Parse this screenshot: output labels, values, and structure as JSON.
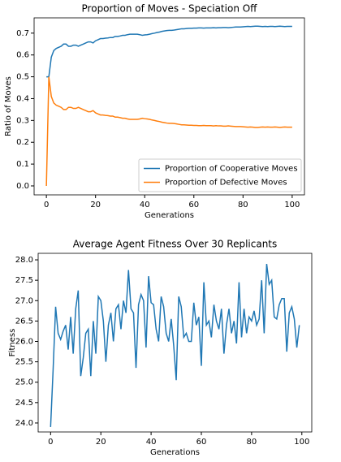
{
  "chart_data": [
    {
      "type": "line",
      "title": "Proportion of Moves - Speciation Off",
      "x_label": "Generations",
      "y_label": "Ratio of Moves",
      "x": [
        0,
        1,
        2,
        3,
        4,
        5,
        6,
        7,
        8,
        9,
        10,
        11,
        12,
        13,
        14,
        15,
        16,
        17,
        18,
        19,
        20,
        21,
        22,
        23,
        24,
        25,
        26,
        27,
        28,
        29,
        30,
        31,
        32,
        33,
        34,
        35,
        36,
        37,
        38,
        39,
        40,
        41,
        42,
        43,
        44,
        45,
        46,
        47,
        48,
        49,
        50,
        51,
        52,
        53,
        54,
        55,
        56,
        57,
        58,
        59,
        60,
        61,
        62,
        63,
        64,
        65,
        66,
        67,
        68,
        69,
        70,
        71,
        72,
        73,
        74,
        75,
        76,
        77,
        78,
        79,
        80,
        81,
        82,
        83,
        84,
        85,
        86,
        87,
        88,
        89,
        90,
        91,
        92,
        93,
        94,
        95,
        96,
        97,
        98,
        99,
        100
      ],
      "series": [
        {
          "name": "Proportion of Cooperative Moves",
          "color": "#1f77b4",
          "values": [
            0.5,
            0.5,
            0.59,
            0.62,
            0.63,
            0.635,
            0.64,
            0.65,
            0.65,
            0.64,
            0.64,
            0.645,
            0.645,
            0.64,
            0.645,
            0.65,
            0.655,
            0.66,
            0.66,
            0.655,
            0.665,
            0.67,
            0.675,
            0.675,
            0.677,
            0.678,
            0.68,
            0.68,
            0.685,
            0.685,
            0.687,
            0.69,
            0.69,
            0.693,
            0.695,
            0.695,
            0.695,
            0.695,
            0.693,
            0.69,
            0.692,
            0.693,
            0.695,
            0.698,
            0.7,
            0.703,
            0.705,
            0.708,
            0.71,
            0.712,
            0.713,
            0.713,
            0.714,
            0.716,
            0.718,
            0.72,
            0.72,
            0.721,
            0.722,
            0.722,
            0.723,
            0.723,
            0.724,
            0.724,
            0.723,
            0.724,
            0.724,
            0.724,
            0.725,
            0.724,
            0.725,
            0.725,
            0.726,
            0.726,
            0.725,
            0.726,
            0.727,
            0.728,
            0.728,
            0.728,
            0.729,
            0.73,
            0.731,
            0.73,
            0.731,
            0.732,
            0.732,
            0.731,
            0.73,
            0.731,
            0.73,
            0.731,
            0.731,
            0.73,
            0.731,
            0.732,
            0.731,
            0.73,
            0.731,
            0.731,
            0.731
          ]
        },
        {
          "name": "Proportion of Defective Moves",
          "color": "#ff7f0e",
          "values": [
            0.0,
            0.5,
            0.41,
            0.38,
            0.37,
            0.365,
            0.36,
            0.35,
            0.35,
            0.36,
            0.36,
            0.355,
            0.355,
            0.36,
            0.355,
            0.35,
            0.345,
            0.34,
            0.34,
            0.345,
            0.335,
            0.33,
            0.325,
            0.325,
            0.323,
            0.322,
            0.32,
            0.32,
            0.315,
            0.315,
            0.313,
            0.31,
            0.31,
            0.307,
            0.305,
            0.305,
            0.305,
            0.305,
            0.307,
            0.31,
            0.308,
            0.307,
            0.305,
            0.302,
            0.3,
            0.297,
            0.295,
            0.292,
            0.29,
            0.288,
            0.287,
            0.287,
            0.286,
            0.284,
            0.282,
            0.28,
            0.28,
            0.279,
            0.278,
            0.278,
            0.277,
            0.277,
            0.276,
            0.276,
            0.277,
            0.276,
            0.276,
            0.276,
            0.275,
            0.276,
            0.275,
            0.275,
            0.274,
            0.274,
            0.275,
            0.274,
            0.273,
            0.272,
            0.272,
            0.272,
            0.271,
            0.27,
            0.269,
            0.27,
            0.269,
            0.268,
            0.268,
            0.269,
            0.27,
            0.269,
            0.27,
            0.269,
            0.269,
            0.27,
            0.269,
            0.268,
            0.269,
            0.27,
            0.269,
            0.269,
            0.269
          ]
        }
      ],
      "xlim": [
        -5,
        105
      ],
      "ylim": [
        -0.041,
        0.77
      ],
      "xticks": [
        0,
        20,
        40,
        60,
        80,
        100
      ],
      "yticks": [
        {
          "value": 0,
          "label": "0.0"
        },
        0.1,
        0.2,
        0.3,
        0.4,
        0.5,
        0.6,
        0.7
      ],
      "legend": "lower right"
    },
    {
      "type": "line",
      "title": "Average Agent Fitness Over 30 Replicants",
      "x_label": "Generations",
      "y_label": "Fitness",
      "x": [
        0,
        1,
        2,
        3,
        4,
        5,
        6,
        7,
        8,
        9,
        10,
        11,
        12,
        13,
        14,
        15,
        16,
        17,
        18,
        19,
        20,
        21,
        22,
        23,
        24,
        25,
        26,
        27,
        28,
        29,
        30,
        31,
        32,
        33,
        34,
        35,
        36,
        37,
        38,
        39,
        40,
        41,
        42,
        43,
        44,
        45,
        46,
        47,
        48,
        49,
        50,
        51,
        52,
        53,
        54,
        55,
        56,
        57,
        58,
        59,
        60,
        61,
        62,
        63,
        64,
        65,
        66,
        67,
        68,
        69,
        70,
        71,
        72,
        73,
        74,
        75,
        76,
        77,
        78,
        79,
        80,
        81,
        82,
        83,
        84,
        85,
        86,
        87,
        88,
        89,
        90,
        91,
        92,
        93,
        94,
        95,
        96,
        97,
        98,
        99
      ],
      "series": [
        {
          "color": "#1f77b4",
          "values": [
            23.9,
            25.3,
            26.85,
            26.2,
            26.05,
            26.25,
            26.4,
            25.8,
            26.6,
            25.7,
            26.8,
            27.25,
            25.15,
            25.6,
            26.2,
            26.3,
            25.15,
            26.5,
            25.7,
            27.1,
            27.0,
            26.5,
            25.5,
            26.4,
            26.7,
            26.0,
            26.8,
            26.9,
            26.3,
            27.0,
            26.7,
            27.75,
            26.8,
            26.7,
            25.35,
            26.9,
            27.15,
            27.0,
            25.85,
            27.6,
            26.95,
            26.9,
            26.3,
            26.0,
            27.1,
            26.85,
            26.2,
            26.0,
            26.55,
            25.9,
            25.05,
            27.1,
            26.85,
            26.1,
            26.2,
            26.0,
            26.0,
            26.95,
            26.4,
            26.6,
            25.4,
            27.45,
            26.4,
            26.5,
            26.1,
            26.9,
            26.5,
            26.3,
            26.8,
            25.7,
            26.4,
            26.8,
            26.2,
            26.5,
            25.95,
            27.45,
            26.1,
            26.8,
            26.2,
            26.6,
            26.5,
            26.75,
            26.4,
            26.55,
            27.5,
            26.2,
            27.9,
            27.4,
            27.5,
            26.6,
            26.55,
            26.9,
            27.05,
            27.05,
            25.75,
            26.7,
            26.85,
            26.55,
            25.85,
            26.4
          ]
        }
      ],
      "xlim": [
        -4.95,
        103.95
      ],
      "ylim": [
        23.78,
        28.16
      ],
      "xticks": [
        0,
        20,
        40,
        60,
        80,
        100
      ],
      "yticks": [
        {
          "value": 24,
          "label": "24.0"
        },
        24.5,
        {
          "value": 25,
          "label": "25.0"
        },
        25.5,
        {
          "value": 26,
          "label": "26.0"
        },
        26.5,
        {
          "value": 27,
          "label": "27.0"
        },
        27.5,
        {
          "value": 28,
          "label": "28.0"
        }
      ]
    }
  ]
}
